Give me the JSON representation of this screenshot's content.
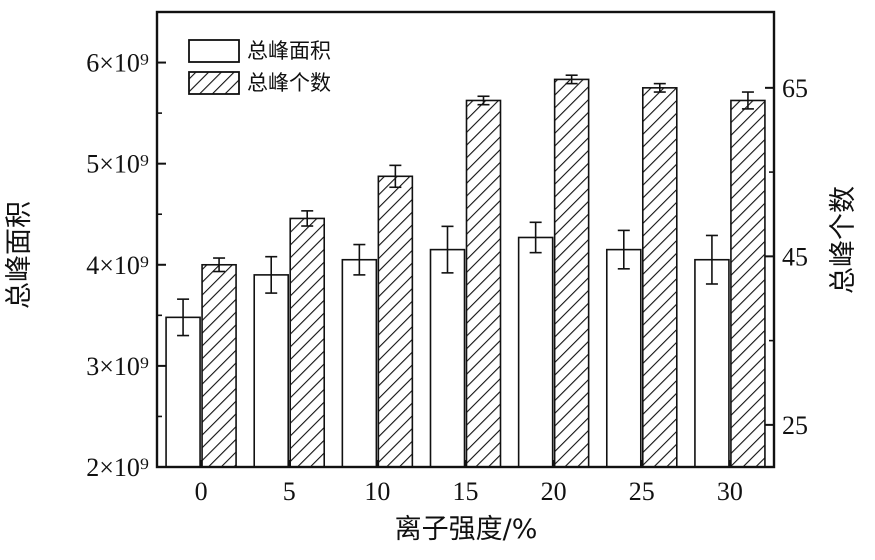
{
  "chart_data": {
    "type": "bar",
    "xlabel": "离子强度/%",
    "ylabel_left": "总峰面积",
    "ylabel_right": "总峰个数",
    "categories": [
      "0",
      "5",
      "10",
      "15",
      "20",
      "25",
      "30"
    ],
    "ylim_left": [
      2000000000,
      6500000000
    ],
    "ylim_right": [
      20,
      74
    ],
    "left_ticks": [
      {
        "value": 2000000000,
        "label": "2×10⁹"
      },
      {
        "value": 3000000000,
        "label": "3×10⁹"
      },
      {
        "value": 4000000000,
        "label": "4×10⁹"
      },
      {
        "value": 5000000000,
        "label": "5×10⁹"
      },
      {
        "value": 6000000000,
        "label": "6×10⁹"
      }
    ],
    "right_ticks": [
      {
        "value": 25,
        "label": "25"
      },
      {
        "value": 45,
        "label": "45"
      },
      {
        "value": 65,
        "label": "65"
      }
    ],
    "legend_position": "top-left",
    "series": [
      {
        "name": "总峰面积",
        "axis": "left",
        "pattern": "solid-white",
        "values": [
          3480000000,
          3900000000,
          4050000000,
          4150000000,
          4270000000,
          4150000000,
          4050000000
        ],
        "errors": [
          180000000,
          180000000,
          150000000,
          230000000,
          150000000,
          190000000,
          240000000
        ]
      },
      {
        "name": "总峰个数",
        "axis": "right",
        "pattern": "diagonal-hatch",
        "values": [
          44.0,
          49.5,
          54.5,
          63.5,
          66.0,
          65.0,
          63.5
        ],
        "errors": [
          0.8,
          0.9,
          1.3,
          0.5,
          0.5,
          0.5,
          1.0
        ]
      }
    ]
  }
}
